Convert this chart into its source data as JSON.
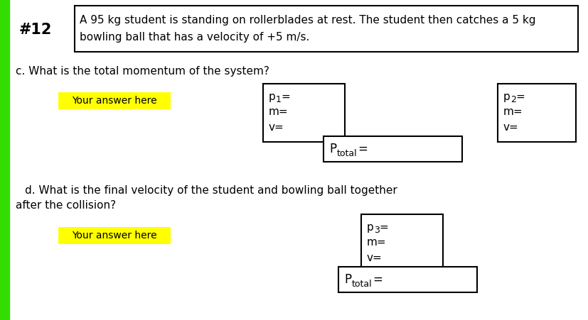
{
  "bg_color": "#ebebeb",
  "page_bg": "#ffffff",
  "green_bar_color": "#33dd00",
  "header_num": "#12",
  "header_text_line1": "A 95 kg student is standing on rollerblades at rest. The student then catches a 5 kg",
  "header_text_line2": "bowling ball that has a velocity of +5 m/s.",
  "question_c": "c. What is the total momentum of the system?",
  "answer_here_text": "Your answer here",
  "answer_bg": "#ffff00",
  "question_d_line1": "d. What is the final velocity of the student and bowling ball together",
  "question_d_line2": "after the collision?",
  "font_size_header_num": 15,
  "font_size_header": 11,
  "font_size_question": 11,
  "font_size_answer": 10,
  "font_size_box_label": 11,
  "font_size_box_sublabel": 9
}
